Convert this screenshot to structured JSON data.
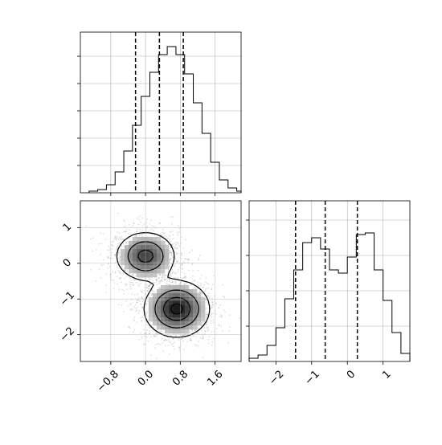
{
  "chart_data": [
    {
      "type": "histogram",
      "panel": "x-marginal",
      "xlim": [
        -1.5,
        2.2
      ],
      "ylim": [
        0,
        1.0
      ],
      "grid": true,
      "bins": [
        -1.2,
        -1.0,
        -0.8,
        -0.6,
        -0.4,
        -0.2,
        0.0,
        0.2,
        0.4,
        0.6,
        0.8,
        1.0,
        1.2,
        1.4,
        1.6,
        1.8,
        2.0,
        2.2
      ],
      "values": [
        0.01,
        0.02,
        0.05,
        0.13,
        0.26,
        0.42,
        0.6,
        0.75,
        0.86,
        0.91,
        0.86,
        0.74,
        0.56,
        0.37,
        0.19,
        0.08,
        0.03,
        0.01
      ],
      "quantile_lines": [
        -0.23,
        0.32,
        0.87
      ]
    },
    {
      "type": "histogram",
      "panel": "y-marginal",
      "xlim": [
        -2.75,
        1.75
      ],
      "ylim": [
        0,
        1.0
      ],
      "grid": true,
      "bins": [
        -2.75,
        -2.5,
        -2.25,
        -2.0,
        -1.75,
        -1.5,
        -1.25,
        -1.0,
        -0.75,
        -0.5,
        -0.25,
        0.0,
        0.25,
        0.5,
        0.75,
        1.0,
        1.25,
        1.5,
        1.75
      ],
      "values": [
        0.02,
        0.04,
        0.1,
        0.21,
        0.39,
        0.57,
        0.74,
        0.77,
        0.7,
        0.57,
        0.55,
        0.65,
        0.79,
        0.8,
        0.57,
        0.38,
        0.18,
        0.05,
        0.02
      ],
      "quantile_lines": [
        -1.45,
        -0.62,
        0.28
      ]
    },
    {
      "type": "scatter-density",
      "panel": "joint",
      "xlim": [
        -1.5,
        2.2
      ],
      "ylim": [
        -2.75,
        1.75
      ],
      "grid": true,
      "xticks": [
        -0.8,
        0.0,
        0.8,
        1.6
      ],
      "xtick_labels": [
        "−0.8",
        "0.0",
        "0.8",
        "1.6"
      ],
      "yticks": [
        1,
        0,
        -1,
        -2
      ],
      "ytick_labels": [
        "1",
        "0",
        "−1",
        "−2"
      ],
      "modes": [
        {
          "x": 0.0,
          "y": 0.2,
          "sx": 0.35,
          "sy": 0.35,
          "weight": 0.45
        },
        {
          "x": 0.72,
          "y": -1.28,
          "sx": 0.38,
          "sy": 0.4,
          "weight": 0.55
        }
      ],
      "contour_levels": [
        "outer",
        "middle",
        "inner",
        "core"
      ]
    },
    {
      "type": "histogram-axis",
      "panel": "y-marginal-axis",
      "xticks": [
        -2,
        -1,
        0,
        1
      ],
      "xtick_labels": [
        "−2",
        "−1",
        "0",
        "1"
      ]
    }
  ]
}
